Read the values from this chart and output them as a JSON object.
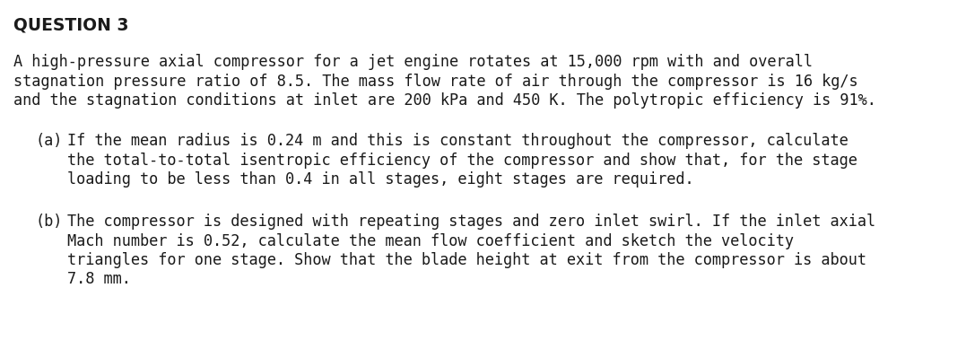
{
  "title": "QUESTION 3",
  "intro_line1": "A high-pressure axial compressor for a jet engine rotates at 15,000 rpm with and overall",
  "intro_line2": "stagnation pressure ratio of 8.5. The mass flow rate of air through the compressor is 16 kg/s",
  "intro_line3": "and the stagnation conditions at inlet are 200 kPa and 450 K. The polytropic efficiency is 91%.",
  "part_a_label": "(a)",
  "part_a_line1": "If the mean radius is 0.24 m and this is constant throughout the compressor, calculate",
  "part_a_line2": "the total-to-total isentropic efficiency of the compressor and show that, for the stage",
  "part_a_line3": "loading to be less than 0.4 in all stages, eight stages are required.",
  "part_b_label": "(b)",
  "part_b_line1": "The compressor is designed with repeating stages and zero inlet swirl. If the inlet axial",
  "part_b_line2": "Mach number is 0.52, calculate the mean flow coefficient and sketch the velocity",
  "part_b_line3": "triangles for one stage. Show that the blade height at exit from the compressor is about",
  "part_b_line4": "7.8 mm.",
  "bg_color": "#ffffff",
  "text_color": "#1a1a1a",
  "title_fontsize": 13.5,
  "body_fontsize": 12.2,
  "font_family": "DejaVu Sans Mono"
}
